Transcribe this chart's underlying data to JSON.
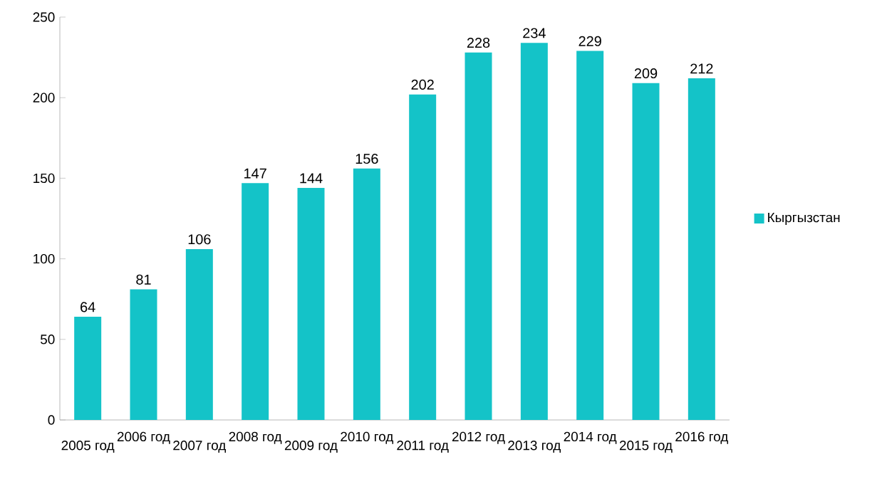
{
  "chart_data": {
    "type": "bar",
    "categories": [
      "2005 год",
      "2006 год",
      "2007 год",
      "2008 год",
      "2009 год",
      "2010 год",
      "2011 год",
      "2012 год",
      "2013 год",
      "2014 год",
      "2015 год",
      "2016 год"
    ],
    "series": [
      {
        "name": "Кыргызстан",
        "color": "#14c3c8",
        "values": [
          64,
          81,
          106,
          147,
          144,
          156,
          202,
          228,
          234,
          229,
          209,
          212
        ]
      }
    ],
    "ylim": [
      0,
      250
    ],
    "yticks": [
      0,
      50,
      100,
      150,
      200,
      250
    ],
    "data_labels": true,
    "legend": "right",
    "grid": false
  }
}
